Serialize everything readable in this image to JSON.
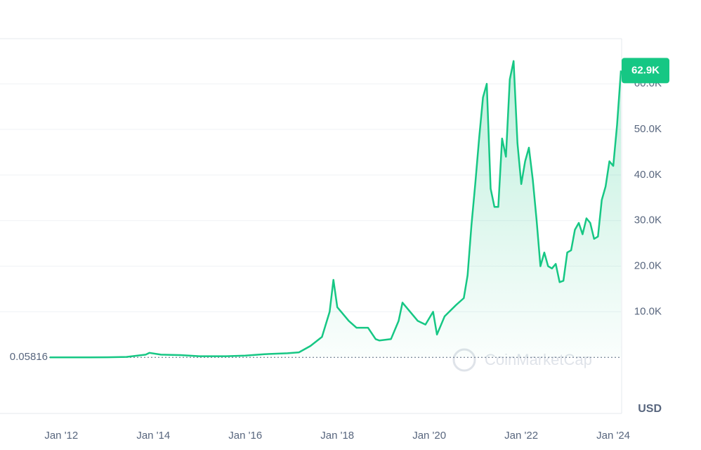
{
  "chart_data": {
    "type": "area",
    "x": [
      "2011-10",
      "2012-03",
      "2012-08",
      "2013-01",
      "2013-06",
      "2013-11",
      "2013-12",
      "2014-03",
      "2014-08",
      "2015-01",
      "2015-08",
      "2016-01",
      "2016-06",
      "2016-12",
      "2017-03",
      "2017-06",
      "2017-09",
      "2017-11",
      "2017-12",
      "2018-01",
      "2018-02",
      "2018-04",
      "2018-06",
      "2018-09",
      "2018-11",
      "2018-12",
      "2019-03",
      "2019-05",
      "2019-06",
      "2019-08",
      "2019-10",
      "2019-12",
      "2020-02",
      "2020-03",
      "2020-05",
      "2020-08",
      "2020-10",
      "2020-11",
      "2020-12",
      "2021-01",
      "2021-02",
      "2021-03",
      "2021-04",
      "2021-05",
      "2021-06",
      "2021-07",
      "2021-08",
      "2021-09",
      "2021-10",
      "2021-11",
      "2021-12",
      "2022-01",
      "2022-02",
      "2022-03",
      "2022-04",
      "2022-05",
      "2022-06",
      "2022-07",
      "2022-08",
      "2022-09",
      "2022-10",
      "2022-11",
      "2022-12",
      "2023-01",
      "2023-02",
      "2023-03",
      "2023-04",
      "2023-05",
      "2023-06",
      "2023-07",
      "2023-08",
      "2023-09",
      "2023-10",
      "2023-11",
      "2023-12",
      "2024-01",
      "2024-02",
      "2024-03"
    ],
    "series": [
      {
        "name": "Price",
        "color": "#16c784",
        "values": [
          3,
          5,
          10,
          15,
          100,
          600,
          1000,
          600,
          500,
          250,
          250,
          400,
          700,
          900,
          1100,
          2500,
          4500,
          10000,
          17000,
          11000,
          10000,
          8000,
          6500,
          6500,
          4000,
          3700,
          4000,
          8000,
          12000,
          10000,
          8000,
          7200,
          10000,
          5000,
          9000,
          11500,
          13000,
          18000,
          29000,
          38000,
          48000,
          57000,
          60000,
          37000,
          33000,
          33000,
          48000,
          44000,
          61000,
          65000,
          47000,
          38000,
          43000,
          46000,
          39000,
          30000,
          20000,
          23000,
          20000,
          19500,
          20500,
          16500,
          16800,
          23000,
          23500,
          28000,
          29500,
          27000,
          30500,
          29500,
          26000,
          26500,
          34500,
          37500,
          43000,
          42000,
          51000,
          62900
        ]
      }
    ],
    "xlim": [
      "2010-09",
      "2024-03"
    ],
    "xticks": [
      {
        "value": "2012-01",
        "label": "Jan '12"
      },
      {
        "value": "2014-01",
        "label": "Jan '14"
      },
      {
        "value": "2016-01",
        "label": "Jan '16"
      },
      {
        "value": "2018-01",
        "label": "Jan '18"
      },
      {
        "value": "2020-01",
        "label": "Jan '20"
      },
      {
        "value": "2022-01",
        "label": "Jan '22"
      },
      {
        "value": "2024-01",
        "label": "Jan '24"
      }
    ],
    "ylim": [
      -12300,
      69900
    ],
    "yticks": [
      {
        "value": 10000,
        "label": "10.0K"
      },
      {
        "value": 20000,
        "label": "20.0K"
      },
      {
        "value": 30000,
        "label": "30.0K"
      },
      {
        "value": 40000,
        "label": "40.0K"
      },
      {
        "value": 50000,
        "label": "50.0K"
      },
      {
        "value": 60000,
        "label": "60.0K"
      }
    ],
    "grid": true,
    "start_price": {
      "value": 0.05816,
      "label": "0.05816"
    },
    "current_price": {
      "value": 62900,
      "label": "62.9K"
    },
    "currency": "USD",
    "watermark": "CoinMarketCap"
  }
}
